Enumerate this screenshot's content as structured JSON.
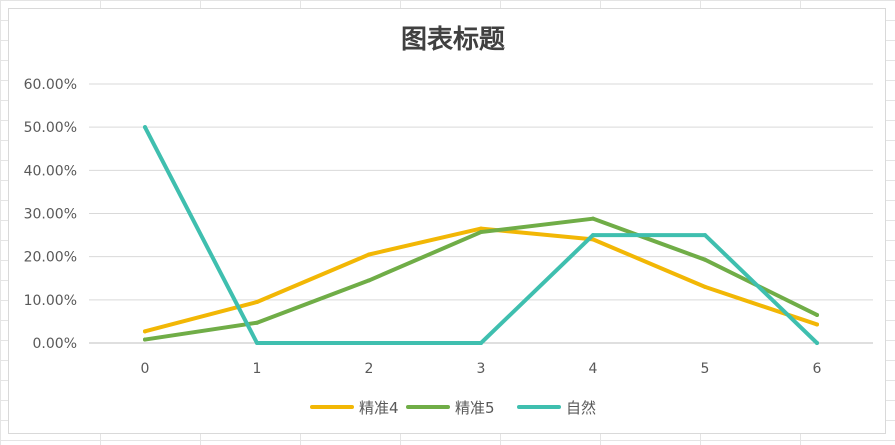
{
  "chart_data": {
    "type": "line",
    "title": "图表标题",
    "xlabel": "",
    "ylabel": "",
    "categories": [
      "0",
      "1",
      "2",
      "3",
      "4",
      "5",
      "6"
    ],
    "ylim": [
      0,
      0.6
    ],
    "y_ticks": [
      0,
      0.1,
      0.2,
      0.3,
      0.4,
      0.5,
      0.6
    ],
    "y_tick_labels": [
      "0.00%",
      "10.00%",
      "20.00%",
      "30.00%",
      "40.00%",
      "50.00%",
      "60.00%"
    ],
    "grid": true,
    "legend_position": "bottom",
    "series": [
      {
        "name": "精准4",
        "color": "#F2B705",
        "values": [
          0.027,
          0.095,
          0.205,
          0.265,
          0.24,
          0.13,
          0.043
        ]
      },
      {
        "name": "精准5",
        "color": "#70AD47",
        "values": [
          0.008,
          0.047,
          0.145,
          0.257,
          0.288,
          0.193,
          0.065
        ]
      },
      {
        "name": "自然",
        "color": "#3FBFAF",
        "values": [
          0.5,
          0.0,
          0.0,
          0.0,
          0.25,
          0.25,
          0.0
        ]
      }
    ]
  }
}
